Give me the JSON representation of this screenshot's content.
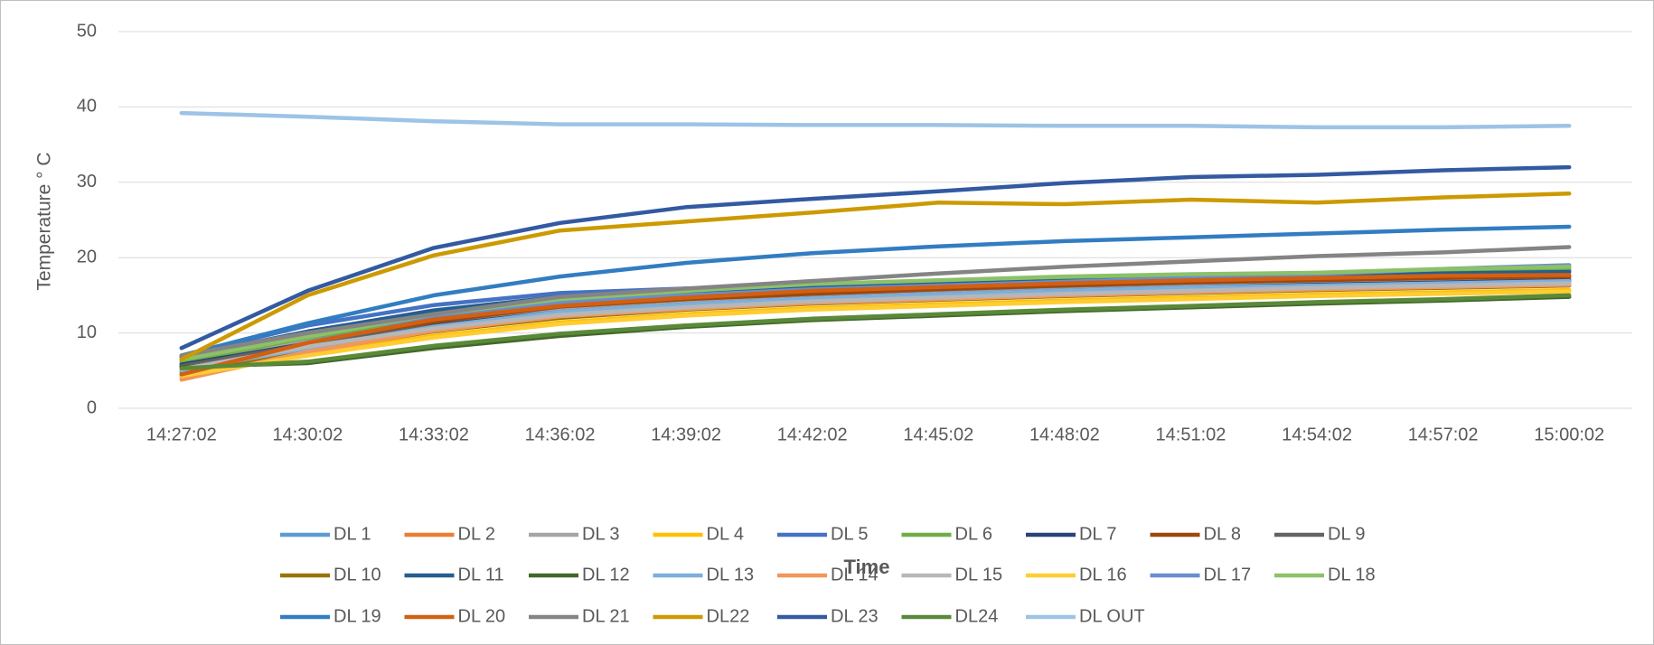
{
  "chart_data": {
    "type": "line",
    "xlabel": "Time",
    "ylabel": "Temperature ° C",
    "categories": [
      "14:27:02",
      "14:30:02",
      "14:33:02",
      "14:36:02",
      "14:39:02",
      "14:42:02",
      "14:45:02",
      "14:48:02",
      "14:51:02",
      "14:54:02",
      "14:57:02",
      "15:00:02"
    ],
    "ylim": [
      0,
      50
    ],
    "yticks": [
      0,
      10,
      20,
      30,
      40,
      50
    ],
    "grid": true,
    "legend": "bottom",
    "series": [
      {
        "name": "DL 1",
        "color": "#5b9bd5",
        "values": [
          6.5,
          9.0,
          11.5,
          13.3,
          14.2,
          14.9,
          15.4,
          15.9,
          16.3,
          16.7,
          17.0,
          17.3
        ]
      },
      {
        "name": "DL 2",
        "color": "#ed7d31",
        "values": [
          4.2,
          8.0,
          10.8,
          12.6,
          13.6,
          14.4,
          15.0,
          15.5,
          15.9,
          16.3,
          16.6,
          16.9
        ]
      },
      {
        "name": "DL 3",
        "color": "#a5a5a5",
        "values": [
          6.0,
          8.8,
          11.2,
          13.0,
          14.0,
          14.7,
          15.2,
          15.7,
          16.1,
          16.5,
          16.8,
          17.1
        ]
      },
      {
        "name": "DL 4",
        "color": "#ffc000",
        "values": [
          4.5,
          7.2,
          9.6,
          11.4,
          12.5,
          13.3,
          13.8,
          14.3,
          14.7,
          15.1,
          15.4,
          15.7
        ]
      },
      {
        "name": "DL 5",
        "color": "#4472c4",
        "values": [
          7.0,
          11.0,
          13.7,
          15.3,
          15.9,
          16.3,
          16.6,
          17.0,
          17.3,
          17.6,
          18.1,
          18.3
        ]
      },
      {
        "name": "DL 6",
        "color": "#70ad47",
        "values": [
          6.2,
          9.4,
          12.2,
          14.2,
          15.3,
          16.2,
          16.8,
          17.3,
          17.6,
          17.9,
          18.3,
          18.6
        ]
      },
      {
        "name": "DL 7",
        "color": "#264478",
        "values": [
          5.8,
          8.6,
          11.0,
          12.8,
          13.8,
          14.6,
          15.1,
          15.6,
          16.0,
          16.4,
          16.7,
          17.0
        ]
      },
      {
        "name": "DL 8",
        "color": "#9e480e",
        "values": [
          5.5,
          8.3,
          11.5,
          13.5,
          14.5,
          15.2,
          15.8,
          16.3,
          16.7,
          17.0,
          17.3,
          17.5
        ]
      },
      {
        "name": "DL 9",
        "color": "#636363",
        "values": [
          5.6,
          8.5,
          10.9,
          12.7,
          13.7,
          14.4,
          15.0,
          15.5,
          15.9,
          16.2,
          16.5,
          16.8
        ]
      },
      {
        "name": "DL 10",
        "color": "#997300",
        "values": [
          4.8,
          7.6,
          10.2,
          12.0,
          13.1,
          13.9,
          14.4,
          14.9,
          15.3,
          15.7,
          16.0,
          16.3
        ]
      },
      {
        "name": "DL 11",
        "color": "#255e91",
        "values": [
          6.8,
          10.2,
          13.0,
          14.8,
          15.6,
          16.1,
          16.5,
          16.9,
          17.2,
          17.5,
          17.9,
          18.1
        ]
      },
      {
        "name": "DL 12",
        "color": "#43682b",
        "values": [
          5.5,
          6.0,
          8.0,
          9.6,
          10.8,
          11.7,
          12.3,
          12.9,
          13.4,
          13.9,
          14.3,
          14.8
        ]
      },
      {
        "name": "DL 13",
        "color": "#7cafdd",
        "values": [
          5.0,
          8.0,
          10.8,
          12.8,
          13.8,
          14.6,
          15.1,
          15.6,
          16.0,
          16.3,
          16.6,
          16.9
        ]
      },
      {
        "name": "DL 14",
        "color": "#f1975a",
        "values": [
          3.8,
          7.5,
          10.3,
          12.2,
          13.2,
          14.0,
          14.5,
          15.0,
          15.4,
          15.8,
          16.1,
          16.4
        ]
      },
      {
        "name": "DL 15",
        "color": "#b7b7b7",
        "values": [
          5.2,
          8.2,
          10.6,
          12.4,
          13.4,
          14.2,
          14.7,
          15.2,
          15.6,
          16.0,
          16.3,
          16.6
        ]
      },
      {
        "name": "DL 16",
        "color": "#ffcd33",
        "values": [
          4.3,
          7.0,
          9.4,
          11.2,
          12.3,
          13.1,
          13.6,
          14.1,
          14.5,
          14.9,
          15.2,
          15.5
        ]
      },
      {
        "name": "DL 17",
        "color": "#698ed0",
        "values": [
          7.0,
          10.0,
          12.0,
          14.0,
          15.0,
          15.8,
          16.3,
          16.8,
          17.3,
          17.8,
          18.5,
          19.0
        ]
      },
      {
        "name": "DL 18",
        "color": "#8cc168",
        "values": [
          6.5,
          9.5,
          12.5,
          14.5,
          15.6,
          16.5,
          17.0,
          17.5,
          17.8,
          18.0,
          18.5,
          18.8
        ]
      },
      {
        "name": "DL 19",
        "color": "#327dc2",
        "values": [
          7.0,
          11.3,
          15.0,
          17.5,
          19.3,
          20.6,
          21.5,
          22.2,
          22.7,
          23.2,
          23.7,
          24.1
        ]
      },
      {
        "name": "DL 20",
        "color": "#d26012",
        "values": [
          4.5,
          8.7,
          11.8,
          13.6,
          14.7,
          15.6,
          16.1,
          16.6,
          17.0,
          17.3,
          17.6,
          17.7
        ]
      },
      {
        "name": "DL 21",
        "color": "#848484",
        "values": [
          7.0,
          10.0,
          12.5,
          14.8,
          15.9,
          16.9,
          17.9,
          18.8,
          19.5,
          20.2,
          20.7,
          21.4
        ]
      },
      {
        "name": "DL22",
        "color": "#cc9a00",
        "values": [
          6.5,
          15.0,
          20.3,
          23.6,
          24.8,
          26.0,
          27.3,
          27.1,
          27.7,
          27.3,
          28.0,
          28.5
        ]
      },
      {
        "name": "DL 23",
        "color": "#335aa1",
        "values": [
          8.0,
          15.6,
          21.3,
          24.6,
          26.7,
          27.8,
          28.8,
          29.9,
          30.7,
          31.0,
          31.6,
          32.0
        ]
      },
      {
        "name": "DL24",
        "color": "#5a8a39",
        "values": [
          5.3,
          6.2,
          8.3,
          9.9,
          11.0,
          11.9,
          12.5,
          13.1,
          13.6,
          14.1,
          14.5,
          15.0
        ]
      },
      {
        "name": "DL OUT",
        "color": "#9dc3e6",
        "values": [
          39.2,
          38.7,
          38.1,
          37.7,
          37.7,
          37.6,
          37.6,
          37.5,
          37.5,
          37.3,
          37.3,
          37.5
        ]
      }
    ]
  }
}
